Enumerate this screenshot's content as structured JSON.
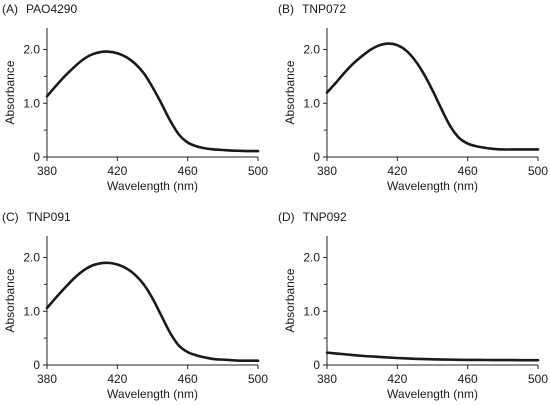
{
  "chart_data": [
    {
      "type": "line",
      "panel": "(A)",
      "title": "PAO4290",
      "xlabel": "Wavelength (nm)",
      "ylabel": "Absorbance",
      "xlim": [
        380,
        500
      ],
      "ylim": [
        0,
        2.4
      ],
      "xticks": [
        "380",
        "420",
        "460",
        "500"
      ],
      "yticks": [
        "0",
        "1.0",
        "2.0"
      ],
      "grid": false,
      "x": [
        380,
        385,
        390,
        395,
        400,
        405,
        410,
        415,
        420,
        425,
        430,
        435,
        440,
        445,
        450,
        455,
        460,
        465,
        470,
        475,
        480,
        485,
        490,
        495,
        500
      ],
      "series": [
        {
          "values": [
            1.13,
            1.32,
            1.5,
            1.66,
            1.8,
            1.9,
            1.95,
            1.96,
            1.93,
            1.86,
            1.74,
            1.56,
            1.3,
            1.0,
            0.68,
            0.42,
            0.27,
            0.2,
            0.16,
            0.14,
            0.13,
            0.12,
            0.115,
            0.11,
            0.11
          ]
        }
      ]
    },
    {
      "type": "line",
      "panel": "(B)",
      "title": "TNP072",
      "xlabel": "Wavelength (nm)",
      "ylabel": "Absorbance",
      "xlim": [
        380,
        500
      ],
      "ylim": [
        0,
        2.4
      ],
      "xticks": [
        "380",
        "420",
        "460",
        "500"
      ],
      "yticks": [
        "0",
        "1.0",
        "2.0"
      ],
      "grid": false,
      "x": [
        380,
        385,
        390,
        395,
        400,
        405,
        410,
        415,
        420,
        425,
        430,
        435,
        440,
        445,
        450,
        455,
        460,
        465,
        470,
        475,
        480,
        485,
        490,
        495,
        500
      ],
      "series": [
        {
          "values": [
            1.2,
            1.38,
            1.57,
            1.74,
            1.88,
            2.0,
            2.08,
            2.11,
            2.08,
            1.98,
            1.8,
            1.55,
            1.24,
            0.9,
            0.58,
            0.36,
            0.25,
            0.2,
            0.17,
            0.15,
            0.14,
            0.14,
            0.14,
            0.14,
            0.14
          ]
        }
      ]
    },
    {
      "type": "line",
      "panel": "(C)",
      "title": "TNP091",
      "xlabel": "Wavelength (nm)",
      "ylabel": "Absorbance",
      "xlim": [
        380,
        500
      ],
      "ylim": [
        0,
        2.4
      ],
      "xticks": [
        "380",
        "420",
        "460",
        "500"
      ],
      "yticks": [
        "0",
        "1.0",
        "2.0"
      ],
      "grid": false,
      "x": [
        380,
        385,
        390,
        395,
        400,
        405,
        410,
        415,
        420,
        425,
        430,
        435,
        440,
        445,
        450,
        455,
        460,
        465,
        470,
        475,
        480,
        485,
        490,
        495,
        500
      ],
      "series": [
        {
          "values": [
            1.06,
            1.25,
            1.43,
            1.6,
            1.74,
            1.84,
            1.89,
            1.9,
            1.87,
            1.8,
            1.68,
            1.5,
            1.24,
            0.92,
            0.6,
            0.36,
            0.24,
            0.18,
            0.14,
            0.11,
            0.1,
            0.09,
            0.08,
            0.08,
            0.08
          ]
        }
      ]
    },
    {
      "type": "line",
      "panel": "(D)",
      "title": "TNP092",
      "xlabel": "Wavelength (nm)",
      "ylabel": "Absorbance",
      "xlim": [
        380,
        500
      ],
      "ylim": [
        0,
        2.4
      ],
      "xticks": [
        "380",
        "420",
        "460",
        "500"
      ],
      "yticks": [
        "0",
        "1.0",
        "2.0"
      ],
      "grid": false,
      "x": [
        380,
        390,
        400,
        410,
        420,
        430,
        440,
        450,
        460,
        470,
        480,
        490,
        500
      ],
      "series": [
        {
          "values": [
            0.23,
            0.2,
            0.17,
            0.15,
            0.13,
            0.115,
            0.105,
            0.1,
            0.095,
            0.093,
            0.092,
            0.09,
            0.09
          ]
        }
      ]
    }
  ]
}
